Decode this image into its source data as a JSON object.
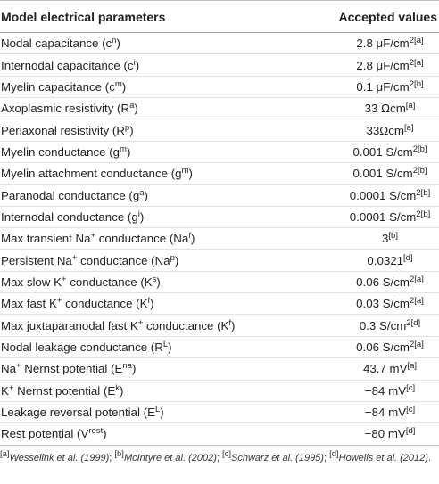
{
  "table": {
    "header": {
      "col1": "Model electrical parameters",
      "col2": "Accepted values"
    },
    "rows": [
      {
        "name": "Nodal capacitance (c",
        "sym": "n",
        "close": ")",
        "value": "2.8 μF/cm",
        "vsup": "2[a]"
      },
      {
        "name": "Internodal capacitance (c",
        "sym": "i",
        "close": ")",
        "value": "2.8 μF/cm",
        "vsup": "2[a]"
      },
      {
        "name": "Myelin capacitance (c",
        "sym": "m",
        "close": ")",
        "value": "0.1 μF/cm",
        "vsup": "2[b]"
      },
      {
        "name": "Axoplasmic resistivity (R",
        "sym": "a",
        "close": ")",
        "value": "33 Ωcm",
        "vsup": "[a]"
      },
      {
        "name": "Periaxonal resistivity (R",
        "sym": "p",
        "close": ")",
        "value": "33Ωcm",
        "vsup": "[a]"
      },
      {
        "name": "Myelin conductance (g",
        "sym": "m",
        "close": ")",
        "value": "0.001 S/cm",
        "vsup": "2[b]"
      },
      {
        "name": "Myelin attachment conductance (g",
        "sym": "m",
        "close": ")",
        "value": "0.001 S/cm",
        "vsup": "2[b]"
      },
      {
        "name": "Paranodal conductance (g",
        "sym": "a",
        "close": ")",
        "value": "0.0001 S/cm",
        "vsup": "2[b]"
      },
      {
        "name": "Internodal conductance (g",
        "sym": "i",
        "close": ")",
        "value": "0.0001 S/cm",
        "vsup": "2[b]"
      },
      {
        "name": "Max transient Na",
        "sym": "+",
        "close": " conductance (Na",
        "sym2": "f",
        "close2": ")",
        "value": "3",
        "vsup": "[b]"
      },
      {
        "name": "Persistent Na",
        "sym": "+",
        "close": " conductance (Na",
        "sym2": "p",
        "close2": ")",
        "value": "0.0321",
        "vsup": "[d]"
      },
      {
        "name": "Max slow K",
        "sym": "+",
        "close": " conductance (K",
        "sym2": "s",
        "close2": ")",
        "value": "0.06 S/cm",
        "vsup": "2[a]"
      },
      {
        "name": "Max fast K",
        "sym": "+",
        "close": " conductance (K",
        "sym2": "f",
        "close2": ")",
        "value": "0.03 S/cm",
        "vsup": "2[a]"
      },
      {
        "name": "Max juxtaparanodal fast K",
        "sym": "+",
        "close": " conductance (K",
        "sym2": "f",
        "close2": ")",
        "value": "0.3 S/cm",
        "vsup": "2[d]"
      },
      {
        "name": "Nodal leakage conductance (R",
        "sym": "L",
        "close": ")",
        "value": "0.06 S/cm",
        "vsup": "2[a]"
      },
      {
        "name": "Na",
        "sym": "+",
        "close": " Nernst potential (E",
        "sym2": "na",
        "close2": ")",
        "value": "43.7 mV",
        "vsup": "[a]"
      },
      {
        "name": "K",
        "sym": "+",
        "close": " Nernst potential (E",
        "sym2": "k",
        "close2": ")",
        "value": "−84 mV",
        "vsup": "[c]"
      },
      {
        "name": "Leakage reversal potential (E",
        "sym": "L",
        "close": ")",
        "value": "−84 mV",
        "vsup": "[c]"
      },
      {
        "name": "Rest potential (V",
        "sym": "rest",
        "close": ")",
        "value": "−80 mV",
        "vsup": "[d]"
      }
    ]
  },
  "footnote": {
    "m1": "[a]",
    "r1": "Wesselink et al. (1999)",
    "s1": "; ",
    "m2": "[b]",
    "r2": "McIntyre et al. (2002)",
    "s2": "; ",
    "m3": "[c]",
    "r3": "Schwarz et al. (1995)",
    "s3": "; ",
    "m4": "[d]",
    "r4": "Howells et al. (2012)",
    "end": "."
  }
}
